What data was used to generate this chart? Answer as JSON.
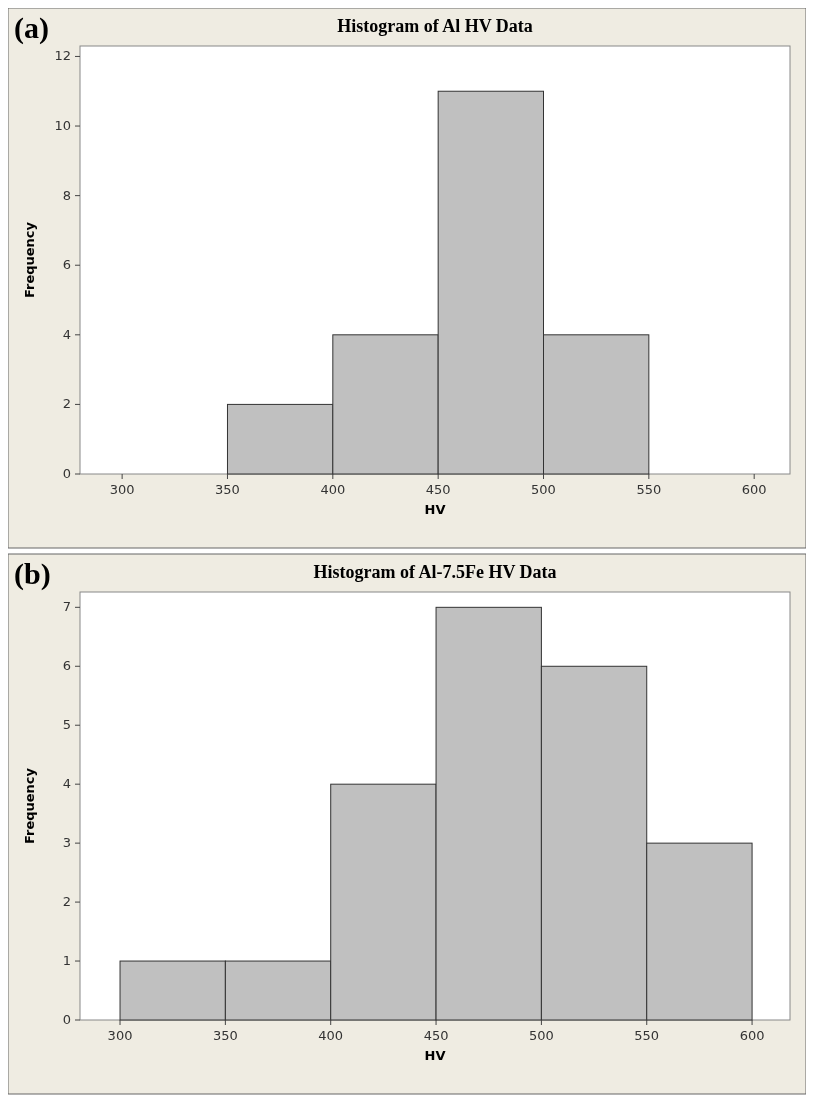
{
  "chart_data": [
    {
      "type": "histogram",
      "title": "Histogram of Al HV Data",
      "xlabel": "HV",
      "ylabel": "Frequency",
      "annotations": [
        "(a)"
      ],
      "bins": [
        350,
        400,
        450,
        500,
        550
      ],
      "values": [
        2,
        4,
        11,
        4
      ],
      "color": "#c0c0c0",
      "xlim": [
        280,
        617
      ],
      "xticks": [
        300,
        350,
        400,
        450,
        500,
        550,
        600
      ],
      "ylim": [
        0,
        12.3
      ],
      "yticks": [
        0,
        2,
        4,
        6,
        8,
        10,
        12
      ]
    },
    {
      "type": "histogram",
      "title": "Histogram of Al-7.5Fe HV Data",
      "xlabel": "HV",
      "ylabel": "Frequency",
      "annotations": [
        "(b)"
      ],
      "bins": [
        300,
        350,
        400,
        450,
        500,
        550,
        600
      ],
      "values": [
        1,
        1,
        4,
        7,
        6,
        3
      ],
      "color": "#c0c0c0",
      "xlim": [
        281,
        618
      ],
      "xticks": [
        300,
        350,
        400,
        450,
        500,
        550,
        600
      ],
      "ylim": [
        0,
        7.26
      ],
      "yticks": [
        0,
        1,
        2,
        3,
        4,
        5,
        6,
        7
      ]
    }
  ]
}
